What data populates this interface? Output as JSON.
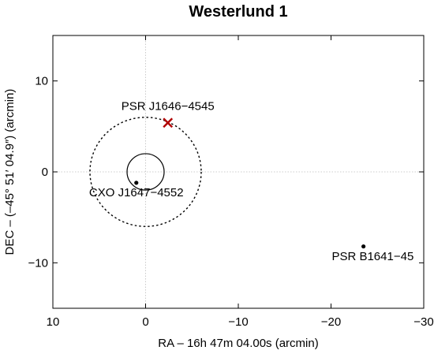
{
  "chart_data": {
    "type": "scatter",
    "title": "Westerlund 1",
    "xlabel": "RA – 16h 47m 04.00s (arcmin)",
    "ylabel": "DEC – (–45° 51′ 04.9″) (arcmin)",
    "xlim": [
      10,
      -30
    ],
    "ylim": [
      -15,
      15
    ],
    "x_ticks": [
      10,
      0,
      -10,
      -20,
      -30
    ],
    "x_tick_labels": [
      "10",
      "0",
      "−10",
      "−20",
      "−30"
    ],
    "y_ticks": [
      10,
      0,
      -10
    ],
    "y_tick_labels": [
      "10",
      "0",
      "−10"
    ],
    "zero_lines": true,
    "grid": false,
    "points": [
      {
        "name": "CXO J1647−4552",
        "x": 1.0,
        "y": -1.2,
        "marker": "dot",
        "color": "#000000"
      },
      {
        "name": "PSR B1641−45",
        "x": -23.5,
        "y": -8.2,
        "marker": "dot",
        "color": "#000000"
      },
      {
        "name": "PSR J1646−4545",
        "x": -2.4,
        "y": 5.4,
        "marker": "cross",
        "color": "#b00000"
      }
    ],
    "circles": [
      {
        "x": 0,
        "y": 0,
        "r": 2.0,
        "style": "solid"
      },
      {
        "x": 0,
        "y": 0,
        "r": 6.0,
        "style": "dotted"
      }
    ],
    "annotations": [
      {
        "text": "PSR J1646−4545",
        "x": -2.4,
        "y": 6.8
      },
      {
        "text": "CXO J1647−4552",
        "x": 1.0,
        "y": -2.7
      },
      {
        "text": "PSR B1641−45",
        "x": -24.5,
        "y": -9.7
      }
    ]
  }
}
